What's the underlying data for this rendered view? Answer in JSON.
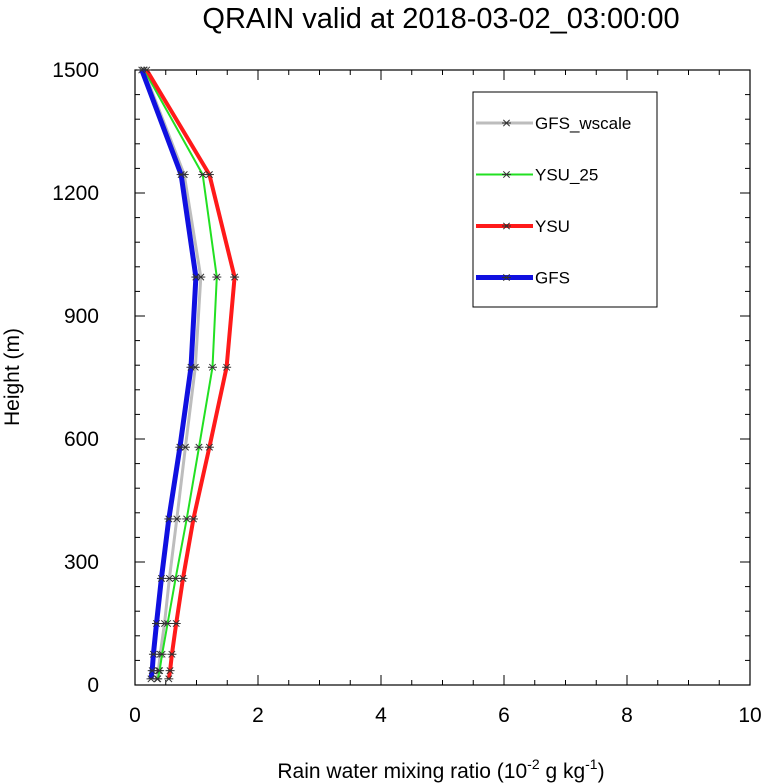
{
  "chart_data": {
    "type": "line",
    "title": "QRAIN valid at 2018-03-02_03:00:00",
    "xlabel": {
      "base": "Rain water mixing ratio (10",
      "exp1": "-2",
      "mid": " g kg",
      "exp2": "-1",
      "end": ")"
    },
    "ylabel": "Height (m)",
    "xlim": [
      0,
      10
    ],
    "ylim": [
      0,
      1500
    ],
    "xticks": [
      0,
      2,
      4,
      6,
      8,
      10
    ],
    "yticks": [
      0,
      300,
      600,
      900,
      1200,
      1500
    ],
    "x_tick_labels": [
      "0",
      "2",
      "4",
      "6",
      "8",
      "10"
    ],
    "y_tick_labels": [
      "0",
      "300",
      "600",
      "900",
      "1200",
      "1500"
    ],
    "marker": "asterisk",
    "legend_position": "top-right",
    "heights": [
      15,
      35,
      75,
      150,
      260,
      405,
      580,
      775,
      995,
      1245,
      1500
    ],
    "series": [
      {
        "name": "GFS_wscale",
        "color": "#bdbdbd",
        "width": 3,
        "x": [
          0.36,
          0.38,
          0.41,
          0.48,
          0.56,
          0.68,
          0.82,
          0.98,
          1.07,
          0.8,
          0.14
        ]
      },
      {
        "name": "YSU_25",
        "color": "#22e022",
        "width": 2,
        "x": [
          0.37,
          0.4,
          0.44,
          0.53,
          0.66,
          0.84,
          1.04,
          1.26,
          1.33,
          1.1,
          0.15
        ]
      },
      {
        "name": "YSU",
        "color": "#ff1a1a",
        "width": 4,
        "x": [
          0.55,
          0.57,
          0.6,
          0.67,
          0.78,
          0.95,
          1.21,
          1.49,
          1.62,
          1.21,
          0.19
        ]
      },
      {
        "name": "GFS",
        "color": "#1010e0",
        "width": 5,
        "x": [
          0.26,
          0.28,
          0.3,
          0.35,
          0.43,
          0.55,
          0.73,
          0.91,
          0.99,
          0.75,
          0.11
        ]
      }
    ]
  }
}
